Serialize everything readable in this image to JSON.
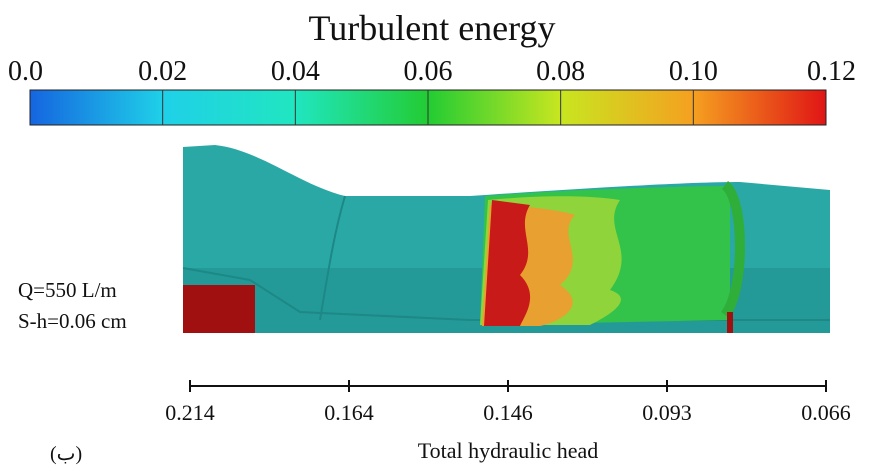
{
  "colorbar": {
    "title": "Turbulent energy",
    "range": [
      0,
      0.12
    ],
    "ticks": [
      {
        "value": 0,
        "label": "0.0"
      },
      0.02,
      0.04,
      0.06,
      0.08,
      {
        "value": 0.1,
        "label": "0.10"
      },
      0.12
    ],
    "colors": [
      "#1565e0",
      "#1fd0e8",
      "#20e6c0",
      "#22cc33",
      "#c8e620",
      "#f5a020",
      "#e01515"
    ]
  },
  "annotations": [
    "Q=550 L/m",
    "S-h=0.06 cm"
  ],
  "axis": {
    "label": "Total hydraulic head",
    "ticks": [
      0.214,
      0.164,
      0.146,
      0.093,
      0.066
    ]
  },
  "panel_label": "(ب)"
}
